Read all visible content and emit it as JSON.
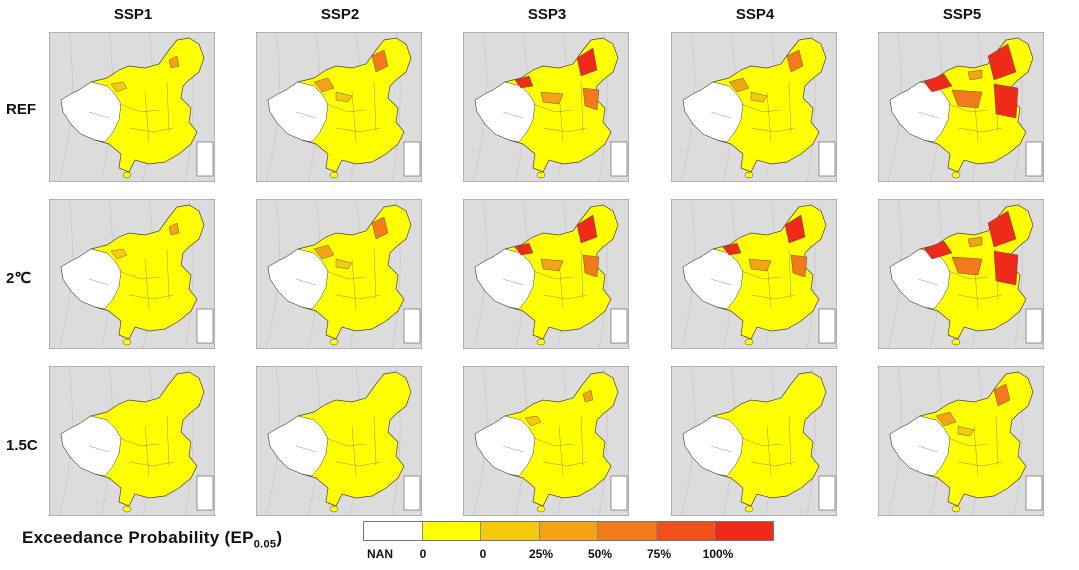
{
  "columns": [
    "SSP1",
    "SSP2",
    "SSP3",
    "SSP4",
    "SSP5"
  ],
  "rows": [
    "REF",
    "2℃",
    "1.5C"
  ],
  "legend": {
    "title_main": "Exceedance Probability (EP",
    "title_sub": "0.05",
    "title_close": ")",
    "tick_labels": [
      "NAN",
      "0",
      "0",
      "25%",
      "50%",
      "75%",
      "100%"
    ],
    "colors": [
      "#ffffff",
      "#ffff00",
      "#f5c90e",
      "#f3a314",
      "#f27a1a",
      "#f0511b",
      "#ee2a18"
    ]
  },
  "map_colors": {
    "background": "#dcdcdc",
    "china_base": "#ffff00",
    "nan_region": "#ffffff",
    "border": "#444444",
    "ep_low": "#f5c90e",
    "ep_mid": "#f3a314",
    "ep_high": "#f27a1a",
    "ep_very_high": "#ee2a18"
  },
  "panels": [
    [
      "low",
      "mid",
      "high",
      "mid",
      "very_high"
    ],
    [
      "low",
      "mid",
      "high",
      "high",
      "very_high"
    ],
    [
      "none",
      "none",
      "low",
      "none",
      "mid"
    ]
  ]
}
